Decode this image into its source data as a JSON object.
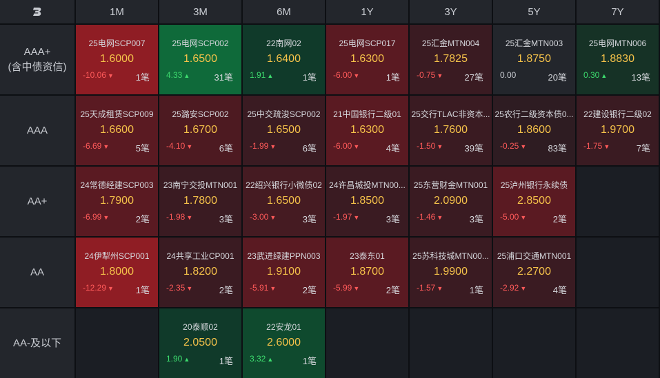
{
  "logo_icon": "brand-b-logo",
  "columns": [
    "1M",
    "3M",
    "6M",
    "1Y",
    "3Y",
    "5Y",
    "7Y"
  ],
  "rows": [
    {
      "label_lines": [
        "AAA+",
        "(含中债资信)"
      ],
      "cells": [
        {
          "name": "25电网SCP007",
          "rate": "1.6000",
          "change": "-10.06",
          "dir": "down",
          "count": "1笔",
          "bg": "#8f1d24"
        },
        {
          "name": "25电网SCP002",
          "rate": "1.6500",
          "change": "4.33",
          "dir": "up",
          "count": "31笔",
          "bg": "#0f6a3a"
        },
        {
          "name": "22南网02",
          "rate": "1.6400",
          "change": "1.91",
          "dir": "up",
          "count": "1笔",
          "bg": "#103a2a"
        },
        {
          "name": "25电网SCP017",
          "rate": "1.6300",
          "change": "-6.00",
          "dir": "down",
          "count": "1笔",
          "bg": "#5a1a22"
        },
        {
          "name": "25汇金MTN004",
          "rate": "1.7825",
          "change": "-0.75",
          "dir": "down",
          "count": "27笔",
          "bg": "#3a1b22"
        },
        {
          "name": "25汇金MTN003",
          "rate": "1.8750",
          "change": "0.00",
          "dir": "flat",
          "count": "20笔",
          "bg": "#23262c"
        },
        {
          "name": "25电网MTN006",
          "rate": "1.8830",
          "change": "0.30",
          "dir": "up",
          "count": "13笔",
          "bg": "#163226"
        }
      ]
    },
    {
      "label_lines": [
        "AAA"
      ],
      "cells": [
        {
          "name": "25天成租赁SCP009",
          "rate": "1.6600",
          "change": "-6.69",
          "dir": "down",
          "count": "5笔",
          "bg": "#5a1a22"
        },
        {
          "name": "25潞安SCP002",
          "rate": "1.6700",
          "change": "-4.10",
          "dir": "down",
          "count": "6笔",
          "bg": "#4d1a21"
        },
        {
          "name": "25中交疏浚SCP002",
          "rate": "1.6500",
          "change": "-1.99",
          "dir": "down",
          "count": "6笔",
          "bg": "#3a1b22"
        },
        {
          "name": "21中国银行二级01",
          "rate": "1.6300",
          "change": "-6.00",
          "dir": "down",
          "count": "4笔",
          "bg": "#5a1a22"
        },
        {
          "name": "25交行TLAC非资本...",
          "rate": "1.7600",
          "change": "-1.50",
          "dir": "down",
          "count": "39笔",
          "bg": "#3a1b22"
        },
        {
          "name": "25农行二级资本债0...",
          "rate": "1.8600",
          "change": "-0.25",
          "dir": "down",
          "count": "83笔",
          "bg": "#2e1c22"
        },
        {
          "name": "22建设银行二级02",
          "rate": "1.9700",
          "change": "-1.75",
          "dir": "down",
          "count": "7笔",
          "bg": "#3a1b22"
        }
      ]
    },
    {
      "label_lines": [
        "AA+"
      ],
      "cells": [
        {
          "name": "24常德经建SCP003",
          "rate": "1.7900",
          "change": "-6.99",
          "dir": "down",
          "count": "2笔",
          "bg": "#5a1a22"
        },
        {
          "name": "23南宁交投MTN001",
          "rate": "1.7800",
          "change": "-1.98",
          "dir": "down",
          "count": "3笔",
          "bg": "#3a1b22"
        },
        {
          "name": "22绍兴银行小微债02",
          "rate": "1.6500",
          "change": "-3.00",
          "dir": "down",
          "count": "3笔",
          "bg": "#451b22"
        },
        {
          "name": "24许昌城投MTN00...",
          "rate": "1.8500",
          "change": "-1.97",
          "dir": "down",
          "count": "3笔",
          "bg": "#3a1b22"
        },
        {
          "name": "25东营财金MTN001",
          "rate": "2.0900",
          "change": "-1.46",
          "dir": "down",
          "count": "3笔",
          "bg": "#3a1b22"
        },
        {
          "name": "25泸州银行永续债",
          "rate": "2.8500",
          "change": "-5.00",
          "dir": "down",
          "count": "2笔",
          "bg": "#5a1a22"
        },
        null
      ]
    },
    {
      "label_lines": [
        "AA"
      ],
      "cells": [
        {
          "name": "24伊犁州SCP001",
          "rate": "1.8000",
          "change": "-12.29",
          "dir": "down",
          "count": "1笔",
          "bg": "#8f1d24"
        },
        {
          "name": "24共享工业CP001",
          "rate": "1.8200",
          "change": "-2.35",
          "dir": "down",
          "count": "2笔",
          "bg": "#3a1b22"
        },
        {
          "name": "23武进绿建PPN003",
          "rate": "1.9100",
          "change": "-5.91",
          "dir": "down",
          "count": "2笔",
          "bg": "#5a1a22"
        },
        {
          "name": "23泰东01",
          "rate": "1.8700",
          "change": "-5.99",
          "dir": "down",
          "count": "2笔",
          "bg": "#5a1a22"
        },
        {
          "name": "25苏科技城MTN00...",
          "rate": "1.9900",
          "change": "-1.57",
          "dir": "down",
          "count": "1笔",
          "bg": "#3a1b22"
        },
        {
          "name": "25浦口交通MTN001",
          "rate": "2.2700",
          "change": "-2.92",
          "dir": "down",
          "count": "4笔",
          "bg": "#3a1b22"
        },
        null
      ]
    },
    {
      "label_lines": [
        "AA-及以下"
      ],
      "cells": [
        null,
        {
          "name": "20泰顺02",
          "rate": "2.0500",
          "change": "1.90",
          "dir": "up",
          "count": "1笔",
          "bg": "#103a2a"
        },
        {
          "name": "22安龙01",
          "rate": "2.6000",
          "change": "3.32",
          "dir": "up",
          "count": "1笔",
          "bg": "#0f4a2e"
        },
        null,
        null,
        null,
        null
      ]
    }
  ]
}
